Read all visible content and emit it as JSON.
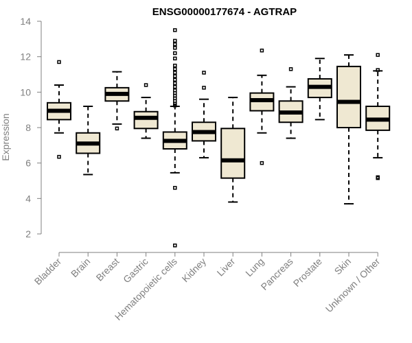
{
  "chart_data": {
    "type": "boxplot",
    "title": "ENSG00000177674 - AGTRAP",
    "xlabel": "",
    "ylabel": "Expression",
    "ylim": [
      1,
      14.3
    ],
    "yticks": [
      2,
      4,
      6,
      8,
      10,
      12,
      14
    ],
    "grid": false,
    "series": [
      {
        "name": "Bladder",
        "whisker_low": 7.7,
        "q1": 8.45,
        "median": 8.95,
        "q3": 9.4,
        "whisker_high": 10.4,
        "outliers": [
          11.7,
          6.35
        ]
      },
      {
        "name": "Brain",
        "whisker_low": 5.35,
        "q1": 6.55,
        "median": 7.1,
        "q3": 7.7,
        "whisker_high": 9.2,
        "outliers": []
      },
      {
        "name": "Breast",
        "whisker_low": 8.2,
        "q1": 9.5,
        "median": 9.9,
        "q3": 10.25,
        "whisker_high": 11.15,
        "outliers": [
          7.95
        ]
      },
      {
        "name": "Gastric",
        "whisker_low": 7.4,
        "q1": 7.95,
        "median": 8.55,
        "q3": 8.9,
        "whisker_high": 9.7,
        "outliers": [
          10.4
        ]
      },
      {
        "name": "Hematopoietic cells",
        "whisker_low": 5.45,
        "q1": 6.8,
        "median": 7.25,
        "q3": 7.75,
        "whisker_high": 9.2,
        "outliers": [
          13.5,
          12.9,
          12.7,
          12.5,
          12.2,
          11.9,
          11.5,
          11.3,
          11.1,
          10.9,
          10.7,
          10.5,
          10.3,
          10.1,
          9.95,
          9.8,
          9.65,
          9.5,
          9.35,
          9.25,
          4.6,
          1.35
        ]
      },
      {
        "name": "Kidney",
        "whisker_low": 6.3,
        "q1": 7.25,
        "median": 7.75,
        "q3": 8.3,
        "whisker_high": 9.6,
        "outliers": [
          11.1,
          10.25
        ]
      },
      {
        "name": "Liver",
        "whisker_low": 3.8,
        "q1": 5.15,
        "median": 6.15,
        "q3": 7.95,
        "whisker_high": 9.7,
        "outliers": []
      },
      {
        "name": "Lung",
        "whisker_low": 7.7,
        "q1": 8.95,
        "median": 9.55,
        "q3": 9.95,
        "whisker_high": 10.95,
        "outliers": [
          12.35,
          6.0
        ]
      },
      {
        "name": "Pancreas",
        "whisker_low": 7.4,
        "q1": 8.3,
        "median": 8.85,
        "q3": 9.5,
        "whisker_high": 10.3,
        "outliers": [
          11.3
        ]
      },
      {
        "name": "Prostate",
        "whisker_low": 8.45,
        "q1": 9.7,
        "median": 10.3,
        "q3": 10.75,
        "whisker_high": 11.9,
        "outliers": []
      },
      {
        "name": "Skin",
        "whisker_low": 3.7,
        "q1": 8.0,
        "median": 9.45,
        "q3": 11.45,
        "whisker_high": 12.1,
        "outliers": []
      },
      {
        "name": "Unknown / Other",
        "whisker_low": 6.3,
        "q1": 7.85,
        "median": 8.45,
        "q3": 9.2,
        "whisker_high": 11.2,
        "outliers": [
          12.1,
          11.25,
          5.15,
          5.2
        ]
      }
    ]
  }
}
